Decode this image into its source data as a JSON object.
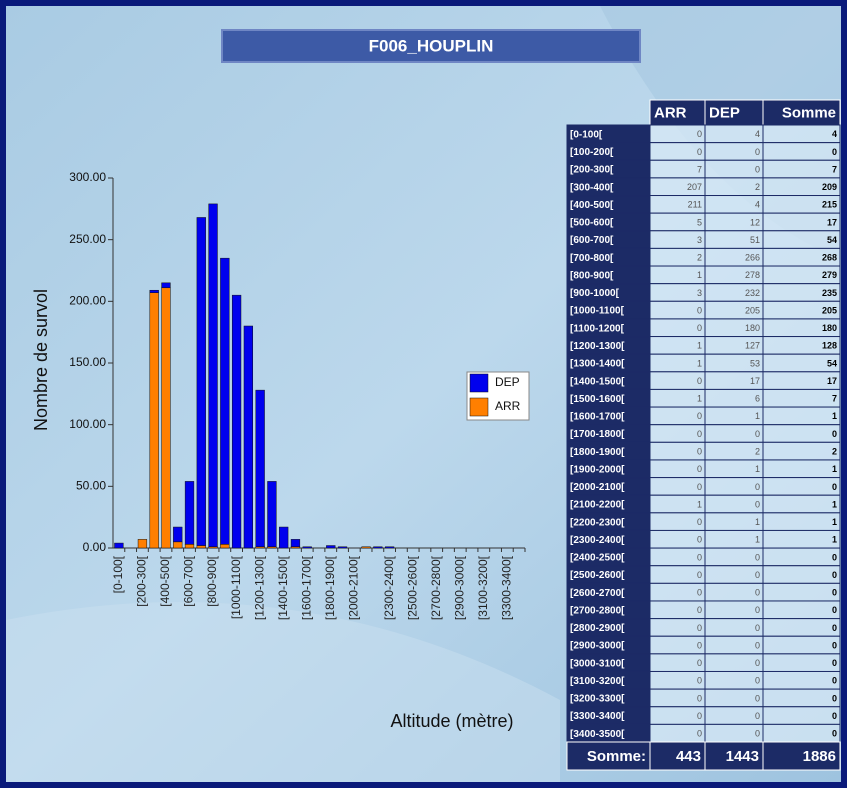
{
  "title": "F006_HOUPLIN",
  "chart_data": {
    "type": "bar",
    "stacked": true,
    "categories": [
      "[0-100[",
      null,
      "[200-300[",
      null,
      "[400-500[",
      null,
      "[600-700[",
      null,
      "[800-900[",
      null,
      "[1000-1100[",
      null,
      "[1200-1300[",
      null,
      "[1400-1500[",
      null,
      "[1600-1700[",
      null,
      "[1800-1900[",
      null,
      "[2000-2100[",
      null,
      null,
      "[2300-2400[",
      null,
      "[2500-2600[",
      null,
      "[2700-2800[",
      null,
      "[2900-3000[",
      null,
      "[3100-3200[",
      null,
      "[3300-3400[",
      null
    ],
    "series": [
      {
        "name": "ARR",
        "color": "#ff7f00",
        "values": [
          0,
          0,
          7,
          207,
          211,
          5,
          3,
          2,
          1,
          3,
          0,
          0,
          1,
          1,
          0,
          1,
          0,
          0,
          0,
          0,
          0,
          1,
          0,
          0,
          0,
          0,
          0,
          0,
          0,
          0,
          0,
          0,
          0,
          0,
          0
        ]
      },
      {
        "name": "DEP",
        "color": "#0000ee",
        "values": [
          4,
          0,
          0,
          2,
          4,
          12,
          51,
          266,
          278,
          232,
          205,
          180,
          127,
          53,
          17,
          6,
          1,
          0,
          2,
          1,
          0,
          0,
          1,
          1,
          0,
          0,
          0,
          0,
          0,
          0,
          0,
          0,
          0,
          0,
          0
        ]
      }
    ],
    "ylabel": "Nombre de survol",
    "xlabel": "Altitude (mètre)",
    "ylim": [
      0,
      300
    ],
    "yticks": [
      {
        "value": 0,
        "label": "0.00"
      },
      {
        "value": 50,
        "label": "50.00"
      },
      {
        "value": 100,
        "label": "100.00"
      },
      {
        "value": 150,
        "label": "150.00"
      },
      {
        "value": 200,
        "label": "200.00"
      },
      {
        "value": 250,
        "label": "250.00"
      },
      {
        "value": 300,
        "label": "300.00"
      }
    ],
    "legend": "right"
  },
  "table": {
    "columns": [
      "ARR",
      "DEP",
      "Somme"
    ],
    "rows": [
      [
        "[0-100[",
        0,
        4,
        4
      ],
      [
        "[100-200[",
        0,
        0,
        0
      ],
      [
        "[200-300[",
        7,
        0,
        7
      ],
      [
        "[300-400[",
        207,
        2,
        209
      ],
      [
        "[400-500[",
        211,
        4,
        215
      ],
      [
        "[500-600[",
        5,
        12,
        17
      ],
      [
        "[600-700[",
        3,
        51,
        54
      ],
      [
        "[700-800[",
        2,
        266,
        268
      ],
      [
        "[800-900[",
        1,
        278,
        279
      ],
      [
        "[900-1000[",
        3,
        232,
        235
      ],
      [
        "[1000-1100[",
        0,
        205,
        205
      ],
      [
        "[1100-1200[",
        0,
        180,
        180
      ],
      [
        "[1200-1300[",
        1,
        127,
        128
      ],
      [
        "[1300-1400[",
        1,
        53,
        54
      ],
      [
        "[1400-1500[",
        0,
        17,
        17
      ],
      [
        "[1500-1600[",
        1,
        6,
        7
      ],
      [
        "[1600-1700[",
        0,
        1,
        1
      ],
      [
        "[1700-1800[",
        0,
        0,
        0
      ],
      [
        "[1800-1900[",
        0,
        2,
        2
      ],
      [
        "[1900-2000[",
        0,
        1,
        1
      ],
      [
        "[2000-2100[",
        0,
        0,
        0
      ],
      [
        "[2100-2200[",
        1,
        0,
        1
      ],
      [
        "[2200-2300[",
        0,
        1,
        1
      ],
      [
        "[2300-2400[",
        0,
        1,
        1
      ],
      [
        "[2400-2500[",
        0,
        0,
        0
      ],
      [
        "[2500-2600[",
        0,
        0,
        0
      ],
      [
        "[2600-2700[",
        0,
        0,
        0
      ],
      [
        "[2700-2800[",
        0,
        0,
        0
      ],
      [
        "[2800-2900[",
        0,
        0,
        0
      ],
      [
        "[2900-3000[",
        0,
        0,
        0
      ],
      [
        "[3000-3100[",
        0,
        0,
        0
      ],
      [
        "[3100-3200[",
        0,
        0,
        0
      ],
      [
        "[3200-3300[",
        0,
        0,
        0
      ],
      [
        "[3300-3400[",
        0,
        0,
        0
      ],
      [
        "[3400-3500[",
        0,
        0,
        0
      ]
    ],
    "footer": [
      "Somme:",
      443,
      1443,
      1886
    ]
  }
}
